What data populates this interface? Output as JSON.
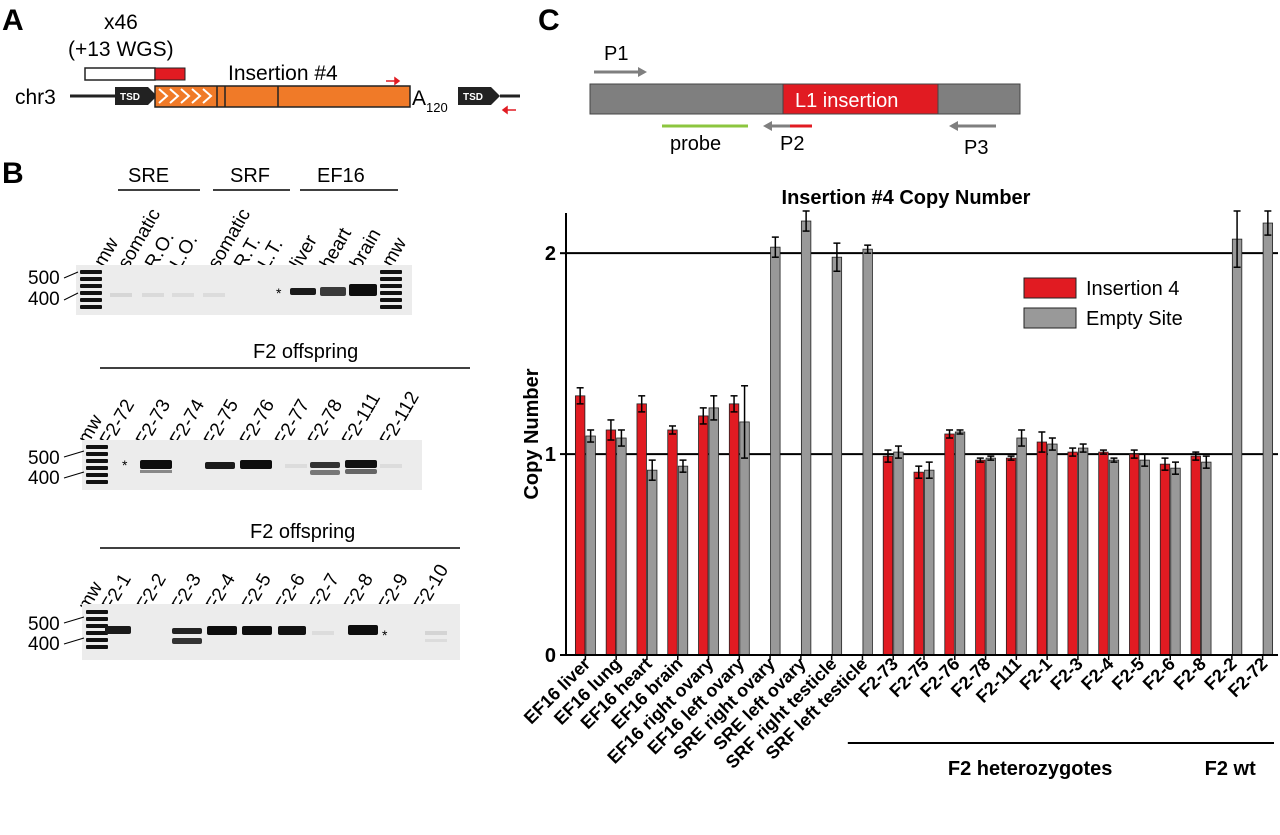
{
  "panelA": {
    "letter": "A",
    "copies": "x46",
    "wgs": "(+13 WGS)",
    "insertion": "Insertion #4",
    "chr": "chr3",
    "tsd": "TSD",
    "polyA_base": "A",
    "polyA_sub": "120",
    "colors": {
      "orange": "#f07a28",
      "red": "#e11b22",
      "dark": "#222222"
    }
  },
  "panelB": {
    "letter": "B",
    "mw": "mw",
    "marker_500": "500",
    "marker_400": "400",
    "star": "*",
    "gel1": {
      "groups": [
        "SRE",
        "SRF",
        "EF16"
      ],
      "lanes": [
        "somatic",
        "R.O.",
        "L.O.",
        "somatic",
        "R.T.",
        "L.T.",
        "liver",
        "heart",
        "brain"
      ]
    },
    "gel2": {
      "title": "F2 offspring",
      "lanes": [
        "F2-72",
        "F2-73",
        "F2-74",
        "F2-75",
        "F2-76",
        "F2-77",
        "F2-78",
        "F2-111",
        "F2-112"
      ]
    },
    "gel3": {
      "title": "F2 offspring",
      "lanes": [
        "F2-1",
        "F2-2",
        "F2-3",
        "F2-4",
        "F2-5",
        "F2-6",
        "F2-7",
        "F2-8",
        "F2-9",
        "F2-10"
      ]
    }
  },
  "panelC": {
    "letter": "C",
    "p1": "P1",
    "p2": "P2",
    "p3": "P3",
    "probe": "probe",
    "l1": "L1 insertion",
    "colors": {
      "grey": "#7f7f7f",
      "red": "#e11b22",
      "green": "#8cc63f"
    }
  },
  "chart_data": {
    "type": "bar",
    "title": "Insertion #4 Copy Number",
    "ylabel": "Copy Number",
    "xlabel": "",
    "ylim": [
      0,
      2.2
    ],
    "yticks": [
      0,
      1,
      2
    ],
    "hlines": [
      1,
      2
    ],
    "legend_position": "right",
    "categories": [
      "EF16 liver",
      "EF16 lung",
      "EF16 heart",
      "EF16 brain",
      "EF16 right ovary",
      "EF16 left ovary",
      "SRE right ovary",
      "SRE left ovary",
      "SRF right testicle",
      "SRF left testicle",
      "F2-73",
      "F2-75",
      "F2-76",
      "F2-78",
      "F2-111",
      "F2-1",
      "F2-3",
      "F2-4",
      "F2-5",
      "F2-6",
      "F2-8",
      "F2-2",
      "F2-72"
    ],
    "series": [
      {
        "name": "Insertion 4",
        "color": "#e11b22",
        "values": [
          1.29,
          1.12,
          1.25,
          1.12,
          1.19,
          1.25,
          0,
          0,
          0,
          0,
          0.99,
          0.91,
          1.1,
          0.97,
          0.98,
          1.06,
          1.01,
          1.01,
          1.0,
          0.95,
          0.99,
          0,
          0
        ],
        "errors": [
          0.04,
          0.05,
          0.04,
          0.02,
          0.04,
          0.04,
          0,
          0,
          0,
          0,
          0.03,
          0.03,
          0.02,
          0.01,
          0.01,
          0.05,
          0.02,
          0.01,
          0.02,
          0.03,
          0.02,
          0,
          0
        ]
      },
      {
        "name": "Empty Site",
        "color": "#999999",
        "values": [
          1.09,
          1.08,
          0.92,
          0.94,
          1.23,
          1.16,
          2.03,
          2.16,
          1.98,
          2.02,
          1.01,
          0.92,
          1.11,
          0.98,
          1.08,
          1.05,
          1.03,
          0.97,
          0.97,
          0.93,
          0.96,
          2.07,
          2.15
        ],
        "errors": [
          0.03,
          0.04,
          0.05,
          0.03,
          0.06,
          0.18,
          0.05,
          0.05,
          0.07,
          0.02,
          0.03,
          0.04,
          0.01,
          0.01,
          0.04,
          0.03,
          0.02,
          0.01,
          0.03,
          0.03,
          0.03,
          0.14,
          0.06
        ]
      }
    ],
    "groups": [
      {
        "label": "F2 heterozygotes"
      },
      {
        "label": "F2 wt"
      }
    ]
  }
}
